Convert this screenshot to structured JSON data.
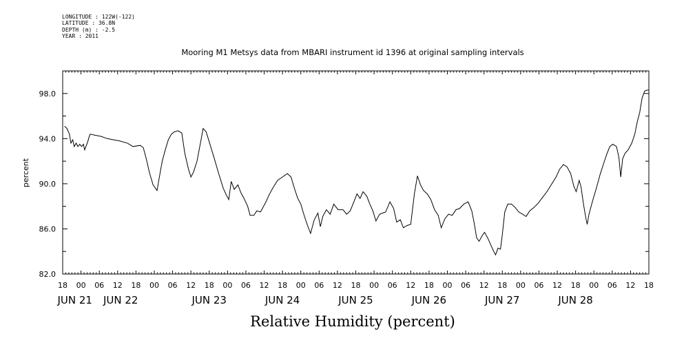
{
  "header": {
    "metadata": [
      "LONGITUDE : 122W(-122)",
      "LATITUDE : 36.8N",
      "DEPTH (m) : -2.5",
      "YEAR : 2011"
    ]
  },
  "chart_data": {
    "type": "line",
    "title": "Mooring M1 Metsys data from MBARI instrument id 1396 at original sampling intervals",
    "xlabel": "Relative Humidity (percent)",
    "ylabel": "percent",
    "x_unit": "hours after JUN 21 00:00 (2011)",
    "xlim": [
      -6,
      186
    ],
    "ylim": [
      82,
      100
    ],
    "y_ticks": [
      {
        "value": 82,
        "label": "82.0"
      },
      {
        "value": 86,
        "label": "86.0"
      },
      {
        "value": 90,
        "label": "90.0"
      },
      {
        "value": 94,
        "label": "94.0"
      },
      {
        "value": 98,
        "label": "98.0"
      }
    ],
    "x_hour_ticks": [
      {
        "t": -6,
        "label": "18"
      },
      {
        "t": 0,
        "label": "00"
      },
      {
        "t": 6,
        "label": "06"
      },
      {
        "t": 12,
        "label": "12"
      },
      {
        "t": 18,
        "label": "18"
      },
      {
        "t": 24,
        "label": "00"
      },
      {
        "t": 30,
        "label": "06"
      },
      {
        "t": 36,
        "label": "12"
      },
      {
        "t": 42,
        "label": "18"
      },
      {
        "t": 48,
        "label": "00"
      },
      {
        "t": 54,
        "label": "06"
      },
      {
        "t": 60,
        "label": "12"
      },
      {
        "t": 66,
        "label": "18"
      },
      {
        "t": 72,
        "label": "00"
      },
      {
        "t": 78,
        "label": "06"
      },
      {
        "t": 84,
        "label": "12"
      },
      {
        "t": 90,
        "label": "18"
      },
      {
        "t": 96,
        "label": "00"
      },
      {
        "t": 102,
        "label": "06"
      },
      {
        "t": 108,
        "label": "12"
      },
      {
        "t": 114,
        "label": "18"
      },
      {
        "t": 120,
        "label": "00"
      },
      {
        "t": 126,
        "label": "06"
      },
      {
        "t": 132,
        "label": "12"
      },
      {
        "t": 138,
        "label": "18"
      },
      {
        "t": 144,
        "label": "00"
      },
      {
        "t": 150,
        "label": "06"
      },
      {
        "t": 156,
        "label": "12"
      },
      {
        "t": 162,
        "label": "18"
      },
      {
        "t": 168,
        "label": "00"
      },
      {
        "t": 174,
        "label": "06"
      },
      {
        "t": 180,
        "label": "12"
      },
      {
        "t": 186,
        "label": "18"
      }
    ],
    "x_day_labels": [
      {
        "t": -2,
        "label": "JUN 21"
      },
      {
        "t": 13,
        "label": "JUN 22"
      },
      {
        "t": 42,
        "label": "JUN 23"
      },
      {
        "t": 66,
        "label": "JUN 24"
      },
      {
        "t": 90,
        "label": "JUN 25"
      },
      {
        "t": 114,
        "label": "JUN 26"
      },
      {
        "t": 138,
        "label": "JUN 27"
      },
      {
        "t": 162,
        "label": "JUN 28"
      }
    ],
    "series": [
      {
        "points": [
          [
            -5.4,
            95.1
          ],
          [
            -4.6,
            94.9
          ],
          [
            -3.8,
            94.4
          ],
          [
            -3.3,
            93.6
          ],
          [
            -2.7,
            93.9
          ],
          [
            -2.2,
            93.3
          ],
          [
            -1.6,
            93.6
          ],
          [
            -1,
            93.3
          ],
          [
            -0.4,
            93.5
          ],
          [
            0.2,
            93.3
          ],
          [
            0.8,
            93.5
          ],
          [
            1.2,
            93
          ],
          [
            1.6,
            93.3
          ],
          [
            2.2,
            93.7
          ],
          [
            2.6,
            94.1
          ],
          [
            3,
            94.4
          ],
          [
            4.6,
            94.3
          ],
          [
            6.6,
            94.2
          ],
          [
            8.6,
            94
          ],
          [
            10.6,
            93.9
          ],
          [
            12.6,
            93.8
          ],
          [
            15.2,
            93.6
          ],
          [
            17,
            93.3
          ],
          [
            19.4,
            93.4
          ],
          [
            20.4,
            93.2
          ],
          [
            21.4,
            92.2
          ],
          [
            22.4,
            91
          ],
          [
            23.6,
            89.9
          ],
          [
            24.4,
            89.6
          ],
          [
            24.9,
            89.4
          ],
          [
            25.6,
            90.5
          ],
          [
            26.6,
            92
          ],
          [
            27.6,
            93
          ],
          [
            28.6,
            93.9
          ],
          [
            29.6,
            94.4
          ],
          [
            30.6,
            94.6
          ],
          [
            31.8,
            94.7
          ],
          [
            33,
            94.5
          ],
          [
            34,
            92.7
          ],
          [
            35.2,
            91.3
          ],
          [
            36,
            90.6
          ],
          [
            36.8,
            91
          ],
          [
            38,
            92
          ],
          [
            39.2,
            93.7
          ],
          [
            40,
            94.9
          ],
          [
            41,
            94.6
          ],
          [
            42,
            93.7
          ],
          [
            43.6,
            92.3
          ],
          [
            45,
            91
          ],
          [
            46.6,
            89.6
          ],
          [
            47.6,
            89
          ],
          [
            48.4,
            88.6
          ],
          [
            49.2,
            90.2
          ],
          [
            50.2,
            89.5
          ],
          [
            51.4,
            89.9
          ],
          [
            52.4,
            89.2
          ],
          [
            53.4,
            88.7
          ],
          [
            54.6,
            88
          ],
          [
            55.4,
            87.2
          ],
          [
            56.6,
            87.2
          ],
          [
            57.6,
            87.6
          ],
          [
            58.8,
            87.5
          ],
          [
            60.4,
            88.3
          ],
          [
            61.6,
            89
          ],
          [
            62.8,
            89.6
          ],
          [
            64.4,
            90.3
          ],
          [
            66,
            90.6
          ],
          [
            67.6,
            90.9
          ],
          [
            68.8,
            90.6
          ],
          [
            70,
            89.5
          ],
          [
            71,
            88.7
          ],
          [
            72,
            88.2
          ],
          [
            73.2,
            87.1
          ],
          [
            74.2,
            86.3
          ],
          [
            75.2,
            85.6
          ],
          [
            76.4,
            86.8
          ],
          [
            77.6,
            87.4
          ],
          [
            78.4,
            86.2
          ],
          [
            79.2,
            87.1
          ],
          [
            80.4,
            87.7
          ],
          [
            81.6,
            87.3
          ],
          [
            82.8,
            88.2
          ],
          [
            84.2,
            87.7
          ],
          [
            85.8,
            87.7
          ],
          [
            87,
            87.3
          ],
          [
            88.2,
            87.6
          ],
          [
            89.4,
            88.4
          ],
          [
            90.4,
            89.1
          ],
          [
            91.4,
            88.7
          ],
          [
            92.4,
            89.3
          ],
          [
            93.6,
            88.9
          ],
          [
            94.6,
            88.2
          ],
          [
            95.6,
            87.6
          ],
          [
            96.6,
            86.7
          ],
          [
            97.8,
            87.3
          ],
          [
            98.8,
            87.4
          ],
          [
            99.8,
            87.5
          ],
          [
            101.2,
            88.4
          ],
          [
            102.4,
            87.8
          ],
          [
            103.4,
            86.6
          ],
          [
            104.6,
            86.8
          ],
          [
            105.6,
            86.1
          ],
          [
            106.8,
            86.3
          ],
          [
            108,
            86.4
          ],
          [
            109.2,
            89.1
          ],
          [
            110.2,
            90.7
          ],
          [
            111.2,
            89.9
          ],
          [
            112.2,
            89.4
          ],
          [
            113.4,
            89.1
          ],
          [
            114.6,
            88.6
          ],
          [
            115.8,
            87.7
          ],
          [
            117,
            87.2
          ],
          [
            118,
            86.1
          ],
          [
            119.2,
            86.9
          ],
          [
            120.4,
            87.3
          ],
          [
            121.6,
            87.2
          ],
          [
            122.8,
            87.7
          ],
          [
            124,
            87.8
          ],
          [
            125.4,
            88.2
          ],
          [
            126.8,
            88.4
          ],
          [
            128,
            87.6
          ],
          [
            128.8,
            86.5
          ],
          [
            129.6,
            85.2
          ],
          [
            130.4,
            84.9
          ],
          [
            131.4,
            85.4
          ],
          [
            132.2,
            85.7
          ],
          [
            133.2,
            85.2
          ],
          [
            134.2,
            84.6
          ],
          [
            135.2,
            84
          ],
          [
            135.8,
            83.7
          ],
          [
            136.6,
            84.3
          ],
          [
            137.4,
            84.2
          ],
          [
            138,
            85.5
          ],
          [
            138.8,
            87.5
          ],
          [
            139.8,
            88.2
          ],
          [
            141,
            88.2
          ],
          [
            142.2,
            87.9
          ],
          [
            143.4,
            87.5
          ],
          [
            144.6,
            87.3
          ],
          [
            145.8,
            87.1
          ],
          [
            147,
            87.6
          ],
          [
            148.4,
            87.9
          ],
          [
            149.8,
            88.3
          ],
          [
            151.2,
            88.8
          ],
          [
            152.6,
            89.3
          ],
          [
            154,
            89.9
          ],
          [
            155.6,
            90.6
          ],
          [
            156.8,
            91.3
          ],
          [
            158,
            91.7
          ],
          [
            159.2,
            91.5
          ],
          [
            160.4,
            90.9
          ],
          [
            161.4,
            89.8
          ],
          [
            162.2,
            89.3
          ],
          [
            163.2,
            90.3
          ],
          [
            163.8,
            89.7
          ],
          [
            164.6,
            88.2
          ],
          [
            165.4,
            86.9
          ],
          [
            165.8,
            86.4
          ],
          [
            166.4,
            87.3
          ],
          [
            167.6,
            88.5
          ],
          [
            168.8,
            89.6
          ],
          [
            170,
            90.8
          ],
          [
            171.2,
            91.8
          ],
          [
            172.2,
            92.6
          ],
          [
            173.2,
            93.3
          ],
          [
            174.2,
            93.5
          ],
          [
            175.4,
            93.3
          ],
          [
            176.2,
            92.3
          ],
          [
            176.8,
            90.6
          ],
          [
            177.4,
            92.2
          ],
          [
            178.2,
            92.7
          ],
          [
            179.2,
            93
          ],
          [
            180.4,
            93.6
          ],
          [
            181.4,
            94.4
          ],
          [
            182.2,
            95.5
          ],
          [
            183,
            96.3
          ],
          [
            183.8,
            97.6
          ],
          [
            184.6,
            98.2
          ],
          [
            185.4,
            98.3
          ],
          [
            186,
            98.3
          ]
        ]
      }
    ]
  }
}
